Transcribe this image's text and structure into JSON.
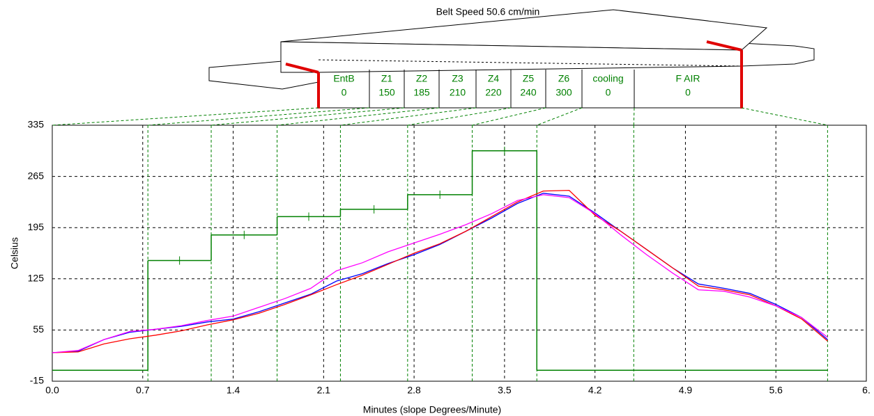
{
  "chart_data": {
    "type": "line",
    "title": "Belt Speed 50.6 cm/min",
    "x_label": "Minutes (slope Degrees/Minute)",
    "y_label": "Celsius",
    "zones": [
      {
        "name": "EntB",
        "setpoint": 0
      },
      {
        "name": "Z1",
        "setpoint": 150
      },
      {
        "name": "Z2",
        "setpoint": 185
      },
      {
        "name": "Z3",
        "setpoint": 210
      },
      {
        "name": "Z4",
        "setpoint": 220
      },
      {
        "name": "Z5",
        "setpoint": 240
      },
      {
        "name": "Z6",
        "setpoint": 300
      },
      {
        "name": "cooling",
        "setpoint": 0
      },
      {
        "name": "F AIR",
        "setpoint": 0
      }
    ],
    "zone_edges": [
      0,
      0.74,
      1.23,
      1.74,
      2.23,
      2.75,
      3.25,
      3.75,
      4.5,
      6.0
    ],
    "setpoint_color": "#008000",
    "x": [
      0,
      0.2,
      0.4,
      0.6,
      0.8,
      1.0,
      1.2,
      1.4,
      1.6,
      1.8,
      2.0,
      2.2,
      2.4,
      2.6,
      2.8,
      3.0,
      3.2,
      3.4,
      3.6,
      3.8,
      4.0,
      4.2,
      4.4,
      4.6,
      4.8,
      5.0,
      5.2,
      5.4,
      5.6,
      5.8,
      6.0
    ],
    "series": [
      {
        "color": "#0000ff",
        "values": [
          24,
          26,
          42,
          52,
          56,
          60,
          66,
          70,
          80,
          92,
          104,
          122,
          132,
          146,
          158,
          172,
          190,
          208,
          228,
          242,
          238,
          215,
          190,
          165,
          140,
          118,
          112,
          105,
          90,
          72,
          42
        ]
      },
      {
        "color": "#ff0000",
        "values": [
          24,
          25,
          36,
          43,
          48,
          54,
          62,
          69,
          78,
          90,
          103,
          117,
          130,
          145,
          160,
          173,
          190,
          210,
          230,
          245,
          246,
          212,
          190,
          165,
          140,
          115,
          110,
          103,
          88,
          70,
          40
        ]
      },
      {
        "color": "#ff00ff",
        "values": [
          24,
          27,
          42,
          53,
          56,
          61,
          68,
          74,
          86,
          98,
          112,
          136,
          147,
          162,
          174,
          186,
          199,
          214,
          232,
          240,
          236,
          214,
          185,
          158,
          133,
          110,
          108,
          100,
          88,
          72,
          45
        ]
      }
    ],
    "xlim": [
      0,
      6.3
    ],
    "ylim": [
      -15,
      335
    ],
    "xticks": [
      {
        "value": 0,
        "label": "0.0"
      },
      0.7,
      1.4,
      2.1,
      2.8,
      3.5,
      4.2,
      4.9,
      5.6,
      {
        "value": 6.3,
        "label": "6."
      }
    ],
    "yticks": [
      -15,
      55,
      125,
      195,
      265,
      335
    ],
    "grid": true
  }
}
